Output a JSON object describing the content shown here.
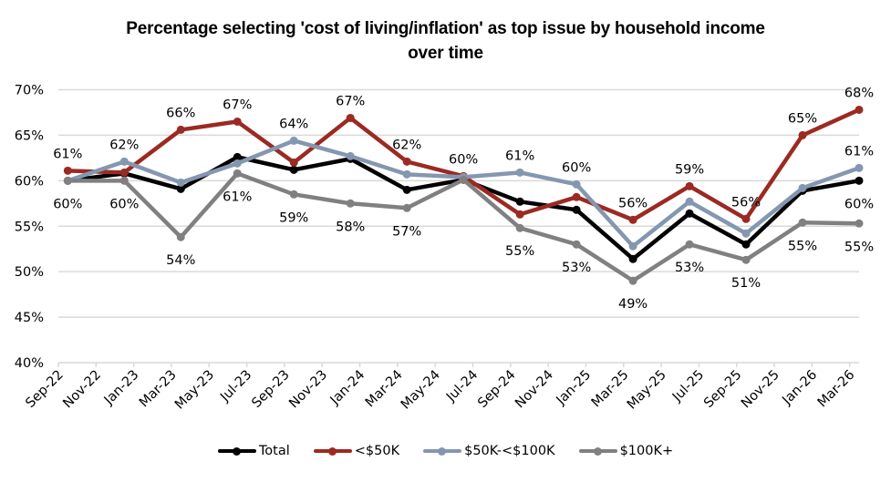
{
  "chart_data": {
    "type": "line",
    "title": "Percentage selecting 'cost of living/inflation' as top issue by household income over time",
    "title_lines": [
      "Percentage selecting 'cost of living/inflation' as top issue by household income",
      "over time"
    ],
    "xlabel": "",
    "ylabel": "",
    "ylim": [
      40,
      70
    ],
    "y_ticks": [
      40,
      45,
      50,
      55,
      60,
      65,
      70
    ],
    "y_tick_labels": [
      "40%",
      "45%",
      "50%",
      "55%",
      "60%",
      "65%",
      "70%"
    ],
    "grid": true,
    "legend_position": "bottom",
    "x_axis_type": "date",
    "x_tick_labels": [
      "Sep-22",
      "Nov-22",
      "Jan-23",
      "Mar-23",
      "May-23",
      "Jul-23",
      "Sep-23",
      "Nov-23",
      "Jan-24",
      "Mar-24",
      "May-24",
      "Jul-24",
      "Sep-24",
      "Nov-24",
      "Jan-25",
      "Mar-25",
      "May-25",
      "Jul-25",
      "Sep-25",
      "Nov-25",
      "Jan-26",
      "Mar-26"
    ],
    "x": [
      "Sep-22",
      "Dec-22",
      "Mar-23",
      "Jun-23",
      "Sep-23",
      "Dec-23",
      "Mar-24",
      "Jun-24",
      "Sep-24",
      "Dec-24",
      "Mar-25",
      "Jun-25",
      "Sep-25",
      "Dec-25",
      "Mar-26"
    ],
    "series": [
      {
        "name": "Total",
        "color": "#000000",
        "values": [
          60.0,
          60.8,
          59.1,
          62.6,
          61.2,
          62.4,
          59.0,
          60.1,
          57.7,
          56.8,
          51.4,
          56.4,
          53.0,
          58.9,
          60.0
        ]
      },
      {
        "name": "<$50K",
        "color": "#9b2a22",
        "values": [
          61.1,
          60.9,
          65.6,
          66.5,
          62.0,
          66.9,
          62.1,
          60.5,
          56.3,
          58.2,
          55.7,
          59.4,
          55.8,
          65.0,
          67.8
        ]
      },
      {
        "name": "$50K-<$100K",
        "color": "#8497b0",
        "values": [
          60.0,
          62.1,
          59.8,
          61.9,
          64.4,
          62.7,
          60.7,
          60.4,
          60.9,
          59.6,
          52.8,
          57.7,
          54.2,
          59.2,
          61.4
        ]
      },
      {
        "name": "$100K+",
        "color": "#808080",
        "values": [
          60.0,
          60.0,
          53.8,
          60.8,
          58.5,
          57.5,
          57.0,
          60.1,
          54.8,
          53.0,
          49.0,
          53.0,
          51.3,
          55.4,
          55.3
        ]
      }
    ],
    "data_labels": [
      {
        "x": "Sep-22",
        "series": "<$50K",
        "text": "61%",
        "position": "above"
      },
      {
        "x": "Sep-22",
        "series": "$100K+",
        "text": "60%",
        "position": "below"
      },
      {
        "x": "Dec-22",
        "series": "$50K-<$100K",
        "text": "62%",
        "position": "above"
      },
      {
        "x": "Dec-22",
        "series": "$100K+",
        "text": "60%",
        "position": "below"
      },
      {
        "x": "Mar-23",
        "series": "<$50K",
        "text": "66%",
        "position": "above"
      },
      {
        "x": "Mar-23",
        "series": "$100K+",
        "text": "54%",
        "position": "below"
      },
      {
        "x": "Jun-23",
        "series": "<$50K",
        "text": "67%",
        "position": "above"
      },
      {
        "x": "Jun-23",
        "series": "$100K+",
        "text": "61%",
        "position": "below"
      },
      {
        "x": "Sep-23",
        "series": "$50K-<$100K",
        "text": "64%",
        "position": "above"
      },
      {
        "x": "Sep-23",
        "series": "$100K+",
        "text": "59%",
        "position": "below"
      },
      {
        "x": "Dec-23",
        "series": "<$50K",
        "text": "67%",
        "position": "above"
      },
      {
        "x": "Dec-23",
        "series": "$100K+",
        "text": "58%",
        "position": "below"
      },
      {
        "x": "Mar-24",
        "series": "<$50K",
        "text": "62%",
        "position": "above"
      },
      {
        "x": "Mar-24",
        "series": "$100K+",
        "text": "57%",
        "position": "below"
      },
      {
        "x": "Jun-24",
        "series": "<$50K",
        "text": "60%",
        "position": "above"
      },
      {
        "x": "Sep-24",
        "series": "$50K-<$100K",
        "text": "61%",
        "position": "above"
      },
      {
        "x": "Sep-24",
        "series": "$100K+",
        "text": "55%",
        "position": "below"
      },
      {
        "x": "Dec-24",
        "series": "$50K-<$100K",
        "text": "60%",
        "position": "above"
      },
      {
        "x": "Dec-24",
        "series": "$100K+",
        "text": "53%",
        "position": "below"
      },
      {
        "x": "Mar-25",
        "series": "<$50K",
        "text": "56%",
        "position": "above"
      },
      {
        "x": "Mar-25",
        "series": "$100K+",
        "text": "49%",
        "position": "below"
      },
      {
        "x": "Jun-25",
        "series": "<$50K",
        "text": "59%",
        "position": "above"
      },
      {
        "x": "Jun-25",
        "series": "$100K+",
        "text": "53%",
        "position": "below"
      },
      {
        "x": "Sep-25",
        "series": "<$50K",
        "text": "56%",
        "position": "above"
      },
      {
        "x": "Sep-25",
        "series": "$100K+",
        "text": "51%",
        "position": "below"
      },
      {
        "x": "Dec-25",
        "series": "<$50K",
        "text": "65%",
        "position": "above"
      },
      {
        "x": "Dec-25",
        "series": "$100K+",
        "text": "55%",
        "position": "below"
      },
      {
        "x": "Mar-26",
        "series": "<$50K",
        "text": "68%",
        "position": "above"
      },
      {
        "x": "Mar-26",
        "series": "$50K-<$100K",
        "text": "61%",
        "position": "above"
      },
      {
        "x": "Mar-26",
        "series": "Total",
        "text": "60%",
        "position": "below"
      },
      {
        "x": "Mar-26",
        "series": "$100K+",
        "text": "55%",
        "position": "below"
      }
    ]
  },
  "colors": {
    "gridline": "#d9d9d9",
    "axis": "#d9d9d9"
  }
}
